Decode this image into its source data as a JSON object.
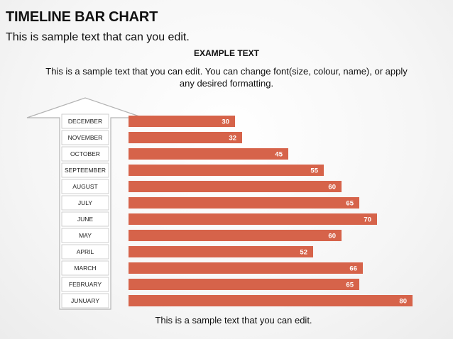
{
  "header": {
    "title": "TIMELINE BAR CHART",
    "subtitle": "This is sample text that can you edit."
  },
  "body": {
    "heading": "EXAMPLE TEXT",
    "description": "This is a sample text that you can edit. You can change font(size, colour, name), or apply any desired formatting.",
    "footer": "This is a sample text that you can edit."
  },
  "colors": {
    "bar": "#d6634a",
    "arrow_fill": "#ffffff",
    "arrow_stroke": "#b3b3b3",
    "label_text": "#ffffff"
  },
  "chart_data": {
    "type": "bar",
    "orientation": "horizontal",
    "categories": [
      "DECEMBER",
      "NOVEMBER",
      "OCTOBER",
      "SEPTEEMBER",
      "AUGUST",
      "JULY",
      "JUNE",
      "MAY",
      "APRIL",
      "MARCH",
      "FEBRUARY",
      "JUNUARY"
    ],
    "values": [
      30,
      32,
      45,
      55,
      60,
      65,
      70,
      60,
      52,
      66,
      65,
      80
    ],
    "xlim": [
      0,
      84
    ],
    "data_labels": true,
    "grid": false,
    "legend": "none"
  }
}
